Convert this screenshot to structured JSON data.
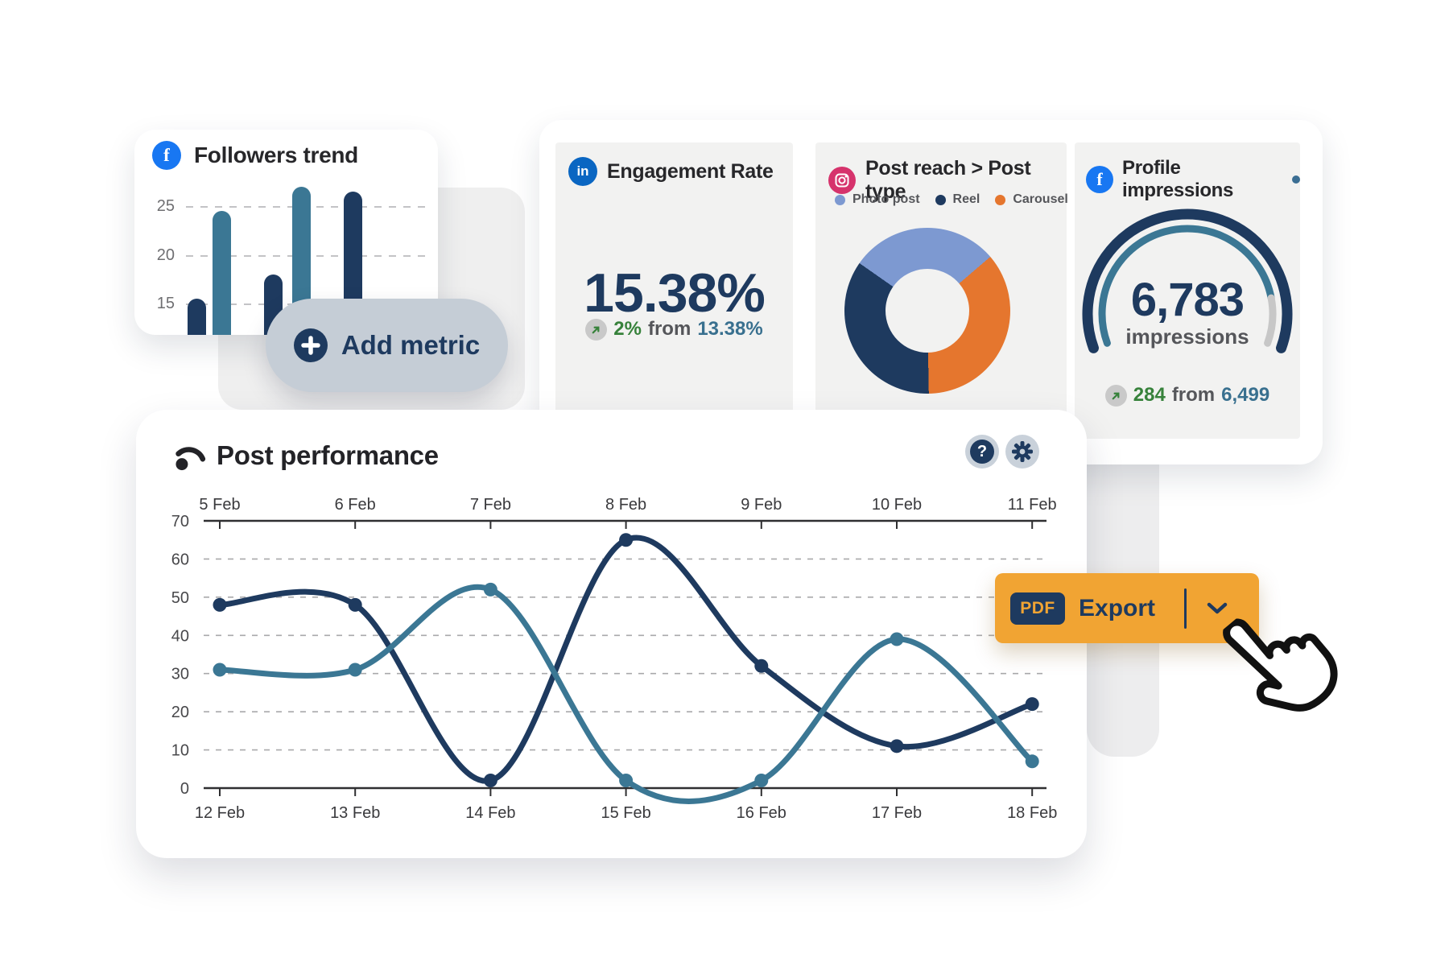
{
  "followers_card": {
    "icon": "facebook-icon",
    "title": "Followers trend",
    "chart_data": {
      "type": "bar",
      "yticks": [
        25,
        20,
        15
      ],
      "values": [
        15.5,
        24.5,
        18,
        27,
        26.5
      ],
      "bar_colors": [
        "#1e3a5f",
        "#3b7794",
        "#1e3a5f",
        "#3b7794",
        "#1e3a5f"
      ],
      "grid": "dashed"
    }
  },
  "add_metric": {
    "label": "Add metric",
    "icon": "plus-icon"
  },
  "engagement_card": {
    "icon": "linkedin-icon",
    "title": "Engagement Rate",
    "value": "15.38%",
    "delta": "2%",
    "from_label": "from",
    "previous": "13.38%",
    "trend_icon": "arrow-up-right-icon"
  },
  "reach_card": {
    "icon": "instagram-icon",
    "title": "Post reach > Post type",
    "legend": [
      {
        "label": "Photo post",
        "color": "#7d99d1"
      },
      {
        "label": "Reel",
        "color": "#1e3a5f"
      },
      {
        "label": "Carousel",
        "color": "#e5762e"
      }
    ],
    "chart_data": {
      "type": "pie",
      "start_deg": 305,
      "inner_ratio": 0.5,
      "slices": [
        {
          "label": "Photo post",
          "pct": 29,
          "color": "#7d99d1"
        },
        {
          "label": "Carousel",
          "pct": 36,
          "color": "#e5762e"
        },
        {
          "label": "Reel",
          "pct": 35,
          "color": "#1e3a5f"
        }
      ]
    }
  },
  "profile_card": {
    "icon": "facebook-icon",
    "title": "Profile impressions",
    "status_dot_color": "#3b6e93",
    "value": "6,783",
    "unit": "impressions",
    "delta": "284",
    "from_label": "from",
    "previous": "6,499",
    "trend_icon": "arrow-up-right-icon",
    "gauge": {
      "type": "gauge",
      "progress_pct": 86,
      "start_deg": -110,
      "end_deg": 110,
      "track_color": "#1e3a5f",
      "progress_color": "#3b7794",
      "rest_color": "#c7c7c7"
    }
  },
  "post_card": {
    "icon": "gauge-icon",
    "title": "Post performance",
    "help_button": "question-icon",
    "settings_button": "gear-icon",
    "chart_data": {
      "type": "line",
      "top_axis_labels": [
        "5 Feb",
        "6 Feb",
        "7 Feb",
        "8 Feb",
        "9 Feb",
        "10 Feb",
        "11 Feb"
      ],
      "bottom_axis_labels": [
        "12 Feb",
        "13 Feb",
        "14 Feb",
        "15 Feb",
        "16 Feb",
        "17 Feb",
        "18 Feb"
      ],
      "yticks": [
        70,
        60,
        50,
        40,
        30,
        20,
        10,
        0
      ],
      "ylim": [
        0,
        70
      ],
      "grid": "dashed",
      "series": [
        {
          "name": "dark-navy-line",
          "color": "#1e3a5f",
          "values": [
            48,
            48,
            2,
            65,
            32,
            11,
            22
          ]
        },
        {
          "name": "teal-line",
          "color": "#3b7794",
          "values": [
            31,
            31,
            52,
            2,
            2,
            39,
            7
          ]
        }
      ]
    }
  },
  "export_button": {
    "badge": "PDF",
    "label": "Export",
    "chevron": "chevron-down-icon"
  },
  "colors": {
    "navy": "#1e3a5f",
    "teal": "#3b7794",
    "light_blue": "#7d99d1",
    "orange_donut": "#e5762e",
    "orange_button": "#f1a433",
    "green": "#37823b",
    "card_bg": "#f2f2f1",
    "pill_gray": "#c5cdd6"
  }
}
